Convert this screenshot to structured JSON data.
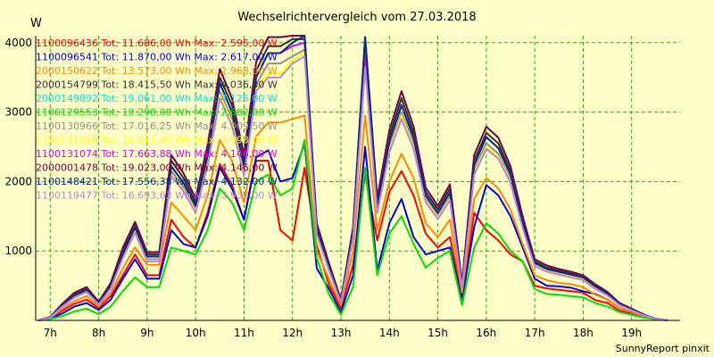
{
  "chart_data": {
    "type": "line",
    "title": "Wechselrichtervergleich vom 27.03.2018",
    "ylabel": "W",
    "xlabel": "",
    "credit": "SunnyReport pinxit",
    "xlim": [
      6.7,
      20.0
    ],
    "ylim": [
      0,
      4100
    ],
    "yticks": [
      1000,
      2000,
      3000,
      4000
    ],
    "xticks": [
      {
        "label": "7h",
        "value": 7
      },
      {
        "label": "8h",
        "value": 8
      },
      {
        "label": "9h",
        "value": 9
      },
      {
        "label": "10h",
        "value": 10
      },
      {
        "label": "11h",
        "value": 11
      },
      {
        "label": "12h",
        "value": 12
      },
      {
        "label": "13h",
        "value": 13
      },
      {
        "label": "14h",
        "value": 14
      },
      {
        "label": "15h",
        "value": 15
      },
      {
        "label": "16h",
        "value": 16
      },
      {
        "label": "17h",
        "value": 17
      },
      {
        "label": "18h",
        "value": 18
      },
      {
        "label": "19h",
        "value": 19
      }
    ],
    "grid": true,
    "legend_position": "top-left",
    "x": [
      6.75,
      7.0,
      7.25,
      7.5,
      7.75,
      8.0,
      8.25,
      8.5,
      8.75,
      9.0,
      9.25,
      9.5,
      9.75,
      10.0,
      10.25,
      10.5,
      10.75,
      11.0,
      11.25,
      11.5,
      11.75,
      12.0,
      12.25,
      12.5,
      12.75,
      13.0,
      13.25,
      13.5,
      13.75,
      14.0,
      14.25,
      14.5,
      14.75,
      15.0,
      15.25,
      15.5,
      15.75,
      16.0,
      16.25,
      16.5,
      16.75,
      17.0,
      17.25,
      17.5,
      17.75,
      18.0,
      18.25,
      18.5,
      18.75,
      19.0,
      19.25,
      19.5,
      19.75
    ],
    "series": [
      {
        "name": "1100096436 Tot: 11.686,00 Wh Max: 2.595,00 W",
        "color": "#ff0000",
        "values": [
          0,
          30,
          140,
          240,
          300,
          180,
          350,
          650,
          950,
          650,
          650,
          1450,
          1200,
          1050,
          1550,
          2250,
          1950,
          1450,
          2300,
          2300,
          1300,
          1150,
          2200,
          1080,
          520,
          180,
          800,
          2100,
          1150,
          1850,
          2150,
          1800,
          1250,
          1050,
          1200,
          350,
          1550,
          1300,
          1150,
          950,
          850,
          500,
          460,
          440,
          420,
          400,
          290,
          250,
          140,
          100,
          50,
          20,
          0
        ]
      },
      {
        "name": "1100096541 Tot: 11.870,00 Wh Max: 2.617,00 W",
        "color": "#0000e0",
        "values": [
          0,
          25,
          100,
          200,
          250,
          150,
          300,
          600,
          880,
          600,
          600,
          1300,
          1100,
          1050,
          1500,
          2200,
          1900,
          1450,
          2350,
          2450,
          2000,
          2050,
          2550,
          750,
          460,
          120,
          650,
          2500,
          720,
          1400,
          1750,
          1200,
          950,
          1000,
          1050,
          300,
          1350,
          1950,
          1800,
          1500,
          1050,
          600,
          500,
          490,
          470,
          420,
          380,
          300,
          180,
          120,
          60,
          20,
          0
        ]
      },
      {
        "name": "2000150622 Tot: 13.573,00 Wh Max: 2.968,00 W",
        "color": "#ff8800",
        "values": [
          0,
          35,
          170,
          280,
          350,
          200,
          400,
          750,
          1050,
          800,
          800,
          1700,
          1500,
          1300,
          1800,
          2600,
          2300,
          1700,
          2650,
          2850,
          2850,
          2900,
          2950,
          1000,
          600,
          220,
          1000,
          2950,
          1300,
          2000,
          2400,
          2050,
          1400,
          1200,
          1450,
          400,
          1750,
          2050,
          1900,
          1600,
          1100,
          650,
          580,
          540,
          520,
          480,
          370,
          300,
          180,
          120,
          60,
          20,
          0
        ]
      },
      {
        "name": "2000154799 Tot: 18.415,50 Wh Max: 4.036,00 W",
        "color": "#303030",
        "values": [
          0,
          45,
          230,
          380,
          460,
          260,
          520,
          1000,
          1380,
          950,
          950,
          2300,
          2050,
          1700,
          2450,
          3500,
          3100,
          2300,
          3600,
          3950,
          3950,
          4050,
          4050,
          1350,
          800,
          290,
          1300,
          3950,
          1700,
          2650,
          3200,
          2700,
          1850,
          1600,
          1900,
          520,
          2300,
          2700,
          2550,
          2150,
          1450,
          850,
          760,
          720,
          680,
          630,
          500,
          400,
          240,
          160,
          80,
          25,
          0
        ]
      },
      {
        "name": "2000149892 Tot: 19.061,00 Wh Max: 4.125,00 W",
        "color": "#00e0e0",
        "values": [
          0,
          50,
          240,
          400,
          480,
          270,
          540,
          1050,
          1420,
          980,
          990,
          2380,
          2120,
          1760,
          2530,
          3620,
          3200,
          2380,
          3720,
          4080,
          4080,
          4100,
          4100,
          1400,
          830,
          300,
          1340,
          4080,
          1760,
          2740,
          3300,
          2790,
          1910,
          1650,
          1960,
          540,
          2380,
          2790,
          2630,
          2220,
          1500,
          880,
          790,
          740,
          700,
          650,
          520,
          410,
          250,
          170,
          85,
          25,
          0
        ]
      },
      {
        "name": "1100129553 Tot: 10.298,00 Wh Max: 2.682,00 W",
        "color": "#00e000",
        "values": [
          0,
          20,
          60,
          130,
          170,
          90,
          200,
          420,
          620,
          480,
          480,
          1050,
          1000,
          950,
          1300,
          1900,
          1700,
          1300,
          2000,
          2100,
          1800,
          1900,
          2600,
          900,
          380,
          80,
          480,
          2200,
          650,
          1250,
          1500,
          1100,
          760,
          900,
          1000,
          220,
          1050,
          1400,
          1250,
          1000,
          850,
          450,
          380,
          370,
          350,
          330,
          250,
          200,
          120,
          80,
          40,
          15,
          0
        ]
      },
      {
        "name": "1100130966 Tot: 17.016,25 Wh Max: 4.009,50 W",
        "color": "#909090",
        "values": [
          0,
          40,
          210,
          350,
          430,
          240,
          480,
          930,
          1300,
          880,
          880,
          2150,
          1920,
          1600,
          2300,
          3300,
          2900,
          2150,
          3400,
          3700,
          3700,
          3800,
          3900,
          1280,
          760,
          270,
          1230,
          3750,
          1600,
          2500,
          3000,
          2550,
          1750,
          1500,
          1780,
          490,
          2170,
          2550,
          2400,
          2030,
          1370,
          800,
          720,
          680,
          640,
          600,
          470,
          380,
          230,
          150,
          75,
          25,
          0
        ]
      },
      {
        "name": "1100131026 Tot: 16.843,00 Wh Max: 3.993,00 W",
        "color": "#ffff00",
        "values": [
          0,
          40,
          200,
          340,
          420,
          235,
          470,
          910,
          1280,
          860,
          860,
          2100,
          1880,
          1570,
          2250,
          3250,
          2850,
          2100,
          3350,
          3550,
          3550,
          3750,
          3850,
          1250,
          740,
          265,
          1200,
          3700,
          1570,
          2450,
          2950,
          2500,
          1720,
          1480,
          1750,
          480,
          2130,
          2500,
          2360,
          2000,
          1350,
          790,
          710,
          670,
          630,
          590,
          460,
          370,
          225,
          150,
          75,
          25,
          0
        ]
      },
      {
        "name": "1100131074 Tot: 17.663,88 Wh Max: 4.146,00 W",
        "color": "#e000e0",
        "values": [
          0,
          45,
          220,
          360,
          440,
          250,
          500,
          960,
          1340,
          920,
          920,
          2220,
          1980,
          1650,
          2380,
          3420,
          3000,
          2230,
          3500,
          3850,
          3850,
          3950,
          4000,
          1320,
          780,
          280,
          1260,
          3850,
          1650,
          2580,
          3100,
          2630,
          1800,
          1550,
          1840,
          500,
          2240,
          2640,
          2480,
          2100,
          1410,
          830,
          740,
          700,
          660,
          620,
          490,
          390,
          235,
          155,
          78,
          25,
          0
        ]
      },
      {
        "name": "2000001478 Tot: 19.023,00 Wh Max: 4.146,00 W",
        "color": "#800040",
        "values": [
          0,
          50,
          240,
          400,
          480,
          270,
          540,
          1050,
          1420,
          980,
          980,
          2380,
          2120,
          1760,
          2530,
          3620,
          3200,
          2380,
          3720,
          4080,
          4080,
          4100,
          4100,
          1400,
          830,
          300,
          1340,
          4080,
          1760,
          2740,
          3300,
          2790,
          1910,
          1650,
          1960,
          540,
          2380,
          2790,
          2630,
          2220,
          1500,
          880,
          790,
          740,
          700,
          650,
          520,
          410,
          250,
          170,
          85,
          25,
          0
        ]
      },
      {
        "name": "1100148421 Tot: 17.556,38 Wh Max: 4.132,00 W",
        "color": "#003080",
        "values": [
          0,
          45,
          220,
          360,
          440,
          250,
          500,
          960,
          1340,
          920,
          920,
          2220,
          1980,
          1650,
          2380,
          3420,
          3000,
          2230,
          3500,
          3850,
          3850,
          4000,
          4100,
          1320,
          780,
          280,
          1260,
          4080,
          1650,
          2580,
          3100,
          2630,
          1800,
          1550,
          1840,
          500,
          2240,
          2640,
          2480,
          2100,
          1410,
          830,
          740,
          700,
          660,
          620,
          490,
          390,
          235,
          155,
          78,
          25,
          0
        ]
      },
      {
        "name": "1100119477 Tot: 16.693,63 Wh Max: 3.937,00 W",
        "color": "#c080e0",
        "values": [
          0,
          40,
          200,
          330,
          410,
          230,
          460,
          900,
          1260,
          850,
          850,
          2080,
          1860,
          1550,
          2230,
          3200,
          2800,
          2080,
          3300,
          3500,
          3500,
          3700,
          3800,
          1240,
          730,
          260,
          1190,
          3650,
          1550,
          2420,
          2900,
          2470,
          1700,
          1460,
          1730,
          470,
          2100,
          2470,
          2330,
          1980,
          1330,
          780,
          700,
          660,
          620,
          580,
          450,
          360,
          220,
          145,
          72,
          25,
          0
        ]
      }
    ]
  }
}
